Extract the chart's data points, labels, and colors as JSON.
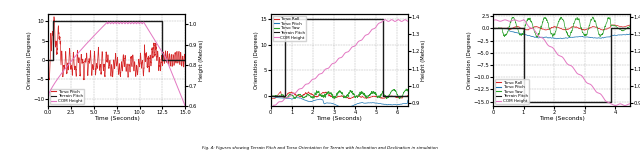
{
  "fig1": {
    "xlim": [
      0,
      15
    ],
    "ylim_left": [
      -12,
      12
    ],
    "ylim_right": [
      0.6,
      1.05
    ],
    "xlabel": "Time (Seconds)",
    "ylabel_left": "Orientation (Degrees)",
    "ylabel_right": "Height (Metres)",
    "legend": [
      "Torso Pitch",
      "Terrain Pitch",
      "COM Height"
    ],
    "legend_colors": [
      "#d62728",
      "#1a1a1a",
      "#e377c2"
    ],
    "terrain_pitch_x": [
      0,
      0.5,
      0.5,
      12.5,
      12.5,
      15
    ],
    "terrain_pitch_y": [
      0,
      0,
      10,
      10,
      0,
      0
    ]
  },
  "fig2": {
    "xlim": [
      0,
      6.5
    ],
    "ylim_left": [
      -2,
      16
    ],
    "ylim_right": [
      0.88,
      1.42
    ],
    "xlabel": "Time (Seconds)",
    "ylabel_left": "Orientation (Degrees)",
    "ylabel_right": "Height (Metres)",
    "legend": [
      "Torso Roll",
      "Torso Pitch",
      "Torso Yaw",
      "Terrain Pitch",
      "COM Height"
    ],
    "legend_colors": [
      "#d62728",
      "#1f77b4",
      "#2ca02c",
      "#1a1a1a",
      "#e377c2"
    ],
    "terrain_pitch_x": [
      0,
      0.7,
      0.7,
      5.3,
      5.3,
      6.5
    ],
    "terrain_pitch_y": [
      0,
      0,
      15,
      15,
      0,
      0
    ]
  },
  "fig3": {
    "xlim": [
      0,
      4.5
    ],
    "ylim_left": [
      -16,
      3
    ],
    "ylim_right": [
      0.88,
      1.42
    ],
    "xlabel": "Time (Seconds)",
    "ylabel_left": "Orientation (Degrees)",
    "ylabel_right": "Height (Metres)",
    "legend": [
      "Torso Roll",
      "Torso Pitch",
      "Torso Yaw",
      "Terrain Pitch",
      "COM Height"
    ],
    "legend_colors": [
      "#d62728",
      "#1f77b4",
      "#2ca02c",
      "#1a1a1a",
      "#e377c2"
    ],
    "terrain_pitch_x": [
      0,
      1.0,
      1.0,
      3.85,
      3.85,
      4.5
    ],
    "terrain_pitch_y": [
      0,
      0,
      -15,
      -15,
      0,
      0
    ]
  },
  "caption": "Fig. 4: Figures showing Terrain Pitch and Torso Orientation for Terrain with Inclination and Declination in simulation"
}
